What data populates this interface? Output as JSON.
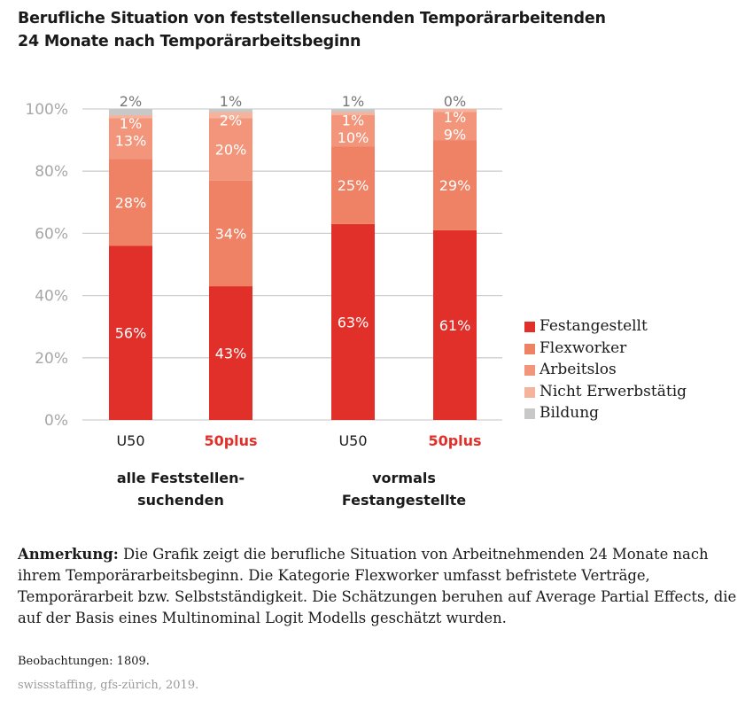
{
  "title_line1": "Berufliche Situation von feststellensuchenden Temporärarbeitenden",
  "title_line2": "24 Monate nach Temporärarbeitsbeginn",
  "chart_data": {
    "type": "bar",
    "stacked": true,
    "title": "Berufliche Situation von feststellensuchenden Temporärarbeitenden 24 Monate nach Temporärarbeitsbeginn",
    "xlabel": "",
    "ylabel": "",
    "ylim": [
      0,
      100
    ],
    "yticks": [
      "0%",
      "20%",
      "40%",
      "60%",
      "80%",
      "100%"
    ],
    "ytick_values": [
      0,
      20,
      40,
      60,
      80,
      100
    ],
    "grid": true,
    "legend_position": "right",
    "categories": [
      "U50",
      "50plus",
      "U50",
      "50plus"
    ],
    "category_highlight": [
      false,
      true,
      false,
      true
    ],
    "groups": [
      {
        "label_line1": "alle Feststellen-",
        "label_line2": "suchenden",
        "categories": [
          0,
          1
        ]
      },
      {
        "label_line1": "vormals",
        "label_line2": "Festangestellte",
        "categories": [
          2,
          3
        ]
      }
    ],
    "series": [
      {
        "name": "Festangestellt",
        "color": "#e1302a",
        "values": [
          56,
          43,
          63,
          61
        ],
        "labels": [
          "56%",
          "43%",
          "63%",
          "61%"
        ]
      },
      {
        "name": "Flexworker",
        "color": "#ef8164",
        "values": [
          28,
          34,
          25,
          29
        ],
        "labels": [
          "28%",
          "34%",
          "25%",
          "29%"
        ]
      },
      {
        "name": "Arbeitslos",
        "color": "#f2957a",
        "values": [
          13,
          20,
          10,
          9
        ],
        "labels": [
          "13%",
          "20%",
          "10%",
          "9%"
        ]
      },
      {
        "name": "Nicht Erwerbstätig",
        "color": "#f6b39c",
        "values": [
          1,
          2,
          1,
          1
        ],
        "labels": [
          "1%",
          "2%",
          "1%",
          "1%"
        ]
      },
      {
        "name": "Bildung",
        "color": "#c8c8c8",
        "values": [
          2,
          1,
          1,
          0
        ],
        "labels": [
          "2%",
          "1%",
          "1%",
          "0%"
        ]
      }
    ]
  },
  "legend": [
    {
      "label": "Festangestellt",
      "color": "#e1302a"
    },
    {
      "label": "Flexworker",
      "color": "#ef8164"
    },
    {
      "label": "Arbeitslos",
      "color": "#f2957a"
    },
    {
      "label": "Nicht Erwerbstätig",
      "color": "#f6b39c"
    },
    {
      "label": "Bildung",
      "color": "#c8c8c8"
    }
  ],
  "note": {
    "label": "Anmerkung:",
    "text": " Die Grafik zeigt die berufliche Situation von Arbeitnehmenden 24 Monate nach ihrem Temporärarbeitsbeginn. Die Kategorie Flexworker umfasst befristete Verträge, Temporärarbeit bzw. Selbstständigkeit. Die Schätzungen beruhen auf Average Partial Effects, die auf der Basis eines Multinominal Logit Modells geschätzt wurden."
  },
  "observations": "Beobachtungen: 1809.",
  "source": "swissstaffing, gfs-zürich, 2019."
}
